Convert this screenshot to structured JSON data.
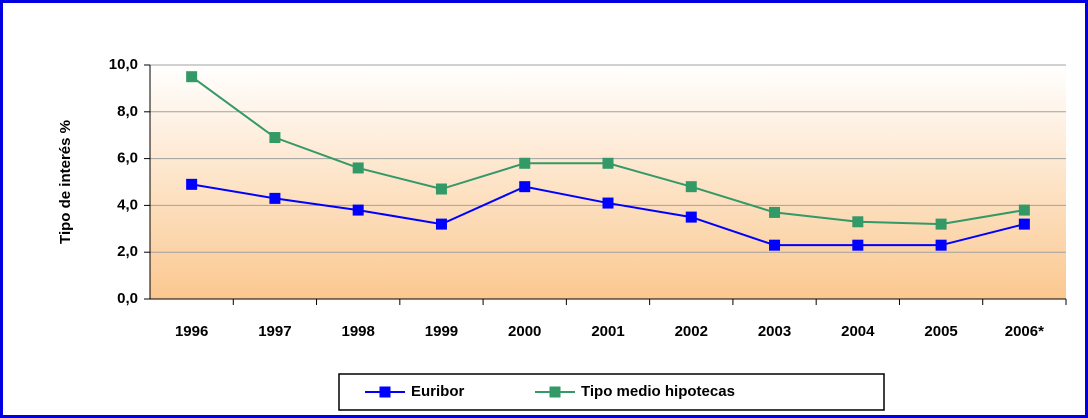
{
  "chart_data": {
    "type": "line",
    "y_label": "Tipo de interés %",
    "categories": [
      "1996",
      "1997",
      "1998",
      "1999",
      "2000",
      "2001",
      "2002",
      "2003",
      "2004",
      "2005",
      "2006*"
    ],
    "series": [
      {
        "name": "Euribor",
        "color": "#0000ff",
        "values": [
          4.9,
          4.3,
          3.8,
          3.2,
          4.8,
          4.1,
          3.5,
          2.3,
          2.3,
          2.3,
          3.2
        ]
      },
      {
        "name": "Tipo medio hipotecas",
        "color": "#339966",
        "values": [
          9.5,
          6.9,
          5.6,
          4.7,
          5.8,
          5.8,
          4.8,
          3.7,
          3.3,
          3.2,
          3.8
        ]
      }
    ],
    "ylim": [
      0,
      10
    ],
    "yticks": [
      {
        "value": 0,
        "label": "0,0"
      },
      {
        "value": 2,
        "label": "2,0"
      },
      {
        "value": 4,
        "label": "4,0"
      },
      {
        "value": 6,
        "label": "6,0"
      },
      {
        "value": 8,
        "label": "8,0"
      },
      {
        "value": 10,
        "label": "10,0"
      }
    ],
    "grid": true
  }
}
